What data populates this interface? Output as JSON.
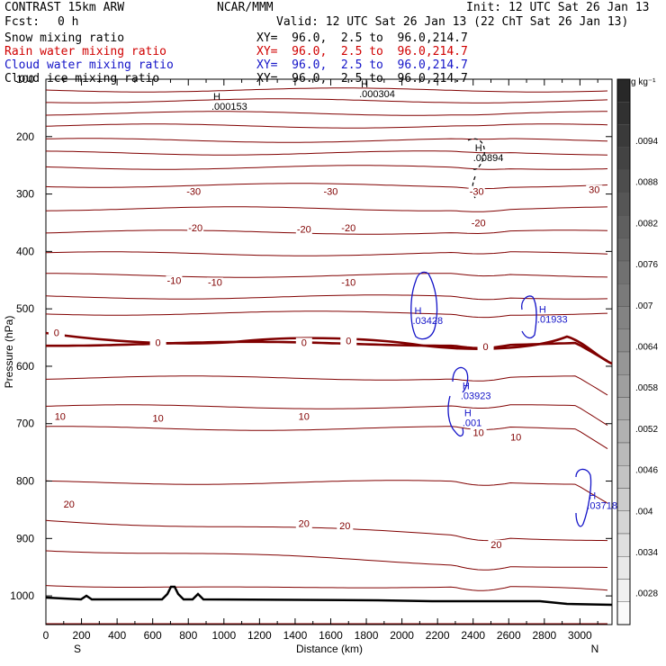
{
  "header": {
    "model": "CONTRAST 15km ARW",
    "org": "NCAR/MMM",
    "init": "Init: 12 UTC Sat 26 Jan 13",
    "fcst_label": "Fcst:",
    "fcst_value": "0 h",
    "valid": "Valid: 12 UTC Sat 26 Jan 13 (22 ChT Sat 26 Jan 13)",
    "fields": [
      {
        "name": "Snow mixing ratio",
        "xy": "XY=  96.0,  2.5 to  96.0,214.7",
        "color": "#000000"
      },
      {
        "name": "Rain water mixing ratio",
        "xy": "XY=  96.0,  2.5 to  96.0,214.7",
        "color": "#d00000"
      },
      {
        "name": "Cloud water mixing ratio",
        "xy": "XY=  96.0,  2.5 to  96.0,214.7",
        "color": "#1414c8"
      },
      {
        "name": "Cloud ice mixing ratio",
        "xy": "XY=  96.0,  2.5 to  96.0,214.7",
        "color": "#000000"
      }
    ]
  },
  "chart_data": {
    "type": "cross-section contour",
    "xlabel": "Distance (km)",
    "ylabel": "Pressure (hPa)",
    "x_ticks": [
      0,
      100,
      200,
      300,
      400,
      500,
      600,
      700,
      800,
      900,
      1000,
      1100,
      1200,
      1300,
      1400,
      1500,
      1600,
      1700,
      1800,
      1900,
      2000,
      2100,
      2200,
      2300,
      2400,
      2500,
      2600,
      2700,
      2800,
      2900,
      3000,
      3100
    ],
    "x_tick_labels": [
      "0",
      "200",
      "400",
      "600",
      "800",
      "1000",
      "1200",
      "1400",
      "1600",
      "1800",
      "2000",
      "2200",
      "2400",
      "2600",
      "2800",
      "3000"
    ],
    "xlim": [
      0,
      3180
    ],
    "y_ticks": [
      100,
      200,
      300,
      400,
      500,
      600,
      700,
      800,
      900,
      1000
    ],
    "y_tick_labels": [
      "100",
      "200",
      "300",
      "400",
      "500",
      "600",
      "700",
      "800",
      "900",
      "1000"
    ],
    "ylim": [
      100,
      1050
    ],
    "end_labels": {
      "left": "S",
      "right": "N"
    },
    "colorbar": {
      "unit": "g kg⁻¹",
      "labels": [
        ".0094",
        ".0088",
        ".0082",
        ".0076",
        ".007",
        ".0064",
        ".0058",
        ".0052",
        ".0046",
        ".004",
        ".0034",
        ".0028"
      ]
    },
    "temperature_contour_labels": [
      {
        "text": "-30",
        "x": 830,
        "p": 300
      },
      {
        "text": "-30",
        "x": 1600,
        "p": 300
      },
      {
        "text": "-30",
        "x": 2420,
        "p": 300
      },
      {
        "text": "30",
        "x": 3080,
        "p": 297
      },
      {
        "text": "-20",
        "x": 840,
        "p": 363
      },
      {
        "text": "-20",
        "x": 1450,
        "p": 366
      },
      {
        "text": "-20",
        "x": 1700,
        "p": 363
      },
      {
        "text": "-20",
        "x": 2430,
        "p": 355
      },
      {
        "text": "-10",
        "x": 720,
        "p": 455
      },
      {
        "text": "-10",
        "x": 950,
        "p": 458
      },
      {
        "text": "-10",
        "x": 1700,
        "p": 458
      },
      {
        "text": "0",
        "x": 60,
        "p": 546
      },
      {
        "text": "0",
        "x": 630,
        "p": 563
      },
      {
        "text": "0",
        "x": 1450,
        "p": 563
      },
      {
        "text": "0",
        "x": 1700,
        "p": 560
      },
      {
        "text": "0",
        "x": 2470,
        "p": 570
      },
      {
        "text": "10",
        "x": 80,
        "p": 692
      },
      {
        "text": "10",
        "x": 630,
        "p": 695
      },
      {
        "text": "10",
        "x": 1450,
        "p": 692
      },
      {
        "text": "10",
        "x": 2430,
        "p": 720
      },
      {
        "text": "10",
        "x": 2640,
        "p": 728
      },
      {
        "text": "20",
        "x": 130,
        "p": 845
      },
      {
        "text": "20",
        "x": 1450,
        "p": 878
      },
      {
        "text": "20",
        "x": 1680,
        "p": 882
      },
      {
        "text": "20",
        "x": 2530,
        "p": 915
      }
    ],
    "maxima": [
      {
        "text": ".000304",
        "x": 1760,
        "p": 125,
        "color": "#000000"
      },
      {
        "text": ".000153",
        "x": 930,
        "p": 147,
        "color": "#000000"
      },
      {
        "text": ".00894",
        "x": 2400,
        "p": 236,
        "color": "#000000"
      },
      {
        "text": ".03428",
        "x": 2060,
        "p": 520,
        "color": "#1414c8"
      },
      {
        "text": ".01933",
        "x": 2760,
        "p": 518,
        "color": "#1414c8"
      },
      {
        "text": ".03923",
        "x": 2330,
        "p": 651,
        "color": "#1414c8"
      },
      {
        "text": ".001",
        "x": 2340,
        "p": 698,
        "color": "#1414c8"
      },
      {
        "text": ".03718",
        "x": 3040,
        "p": 842,
        "color": "#1414c8"
      }
    ],
    "colors": {
      "temperature": "#800000",
      "freezing": "#800000",
      "terrain": "#000000",
      "cloud_water": "#1414c8",
      "snow": "#000000"
    }
  }
}
